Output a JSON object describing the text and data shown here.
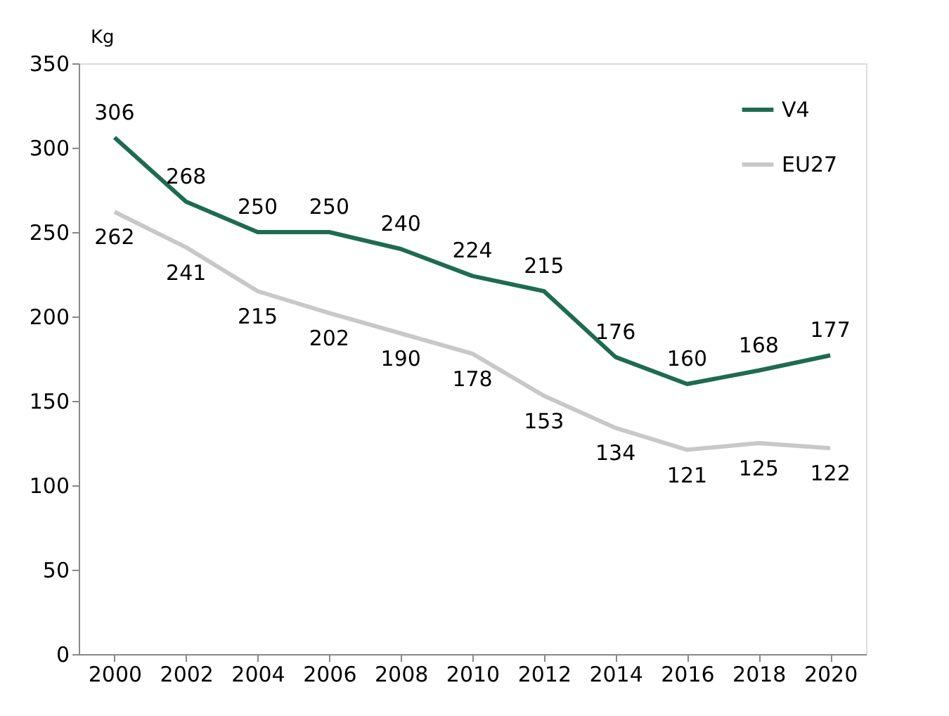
{
  "chart_data": {
    "type": "line",
    "ylabel": "Kg",
    "categories": [
      "2000",
      "2002",
      "2004",
      "2006",
      "2008",
      "2010",
      "2012",
      "2014",
      "2016",
      "2018",
      "2020"
    ],
    "series": [
      {
        "name": "V4",
        "color": "#1e6b52",
        "values": [
          306,
          268,
          250,
          250,
          240,
          224,
          215,
          176,
          160,
          168,
          177
        ]
      },
      {
        "name": "EU27",
        "color": "#c8c8c8",
        "values": [
          262,
          241,
          215,
          202,
          190,
          178,
          153,
          134,
          121,
          125,
          122
        ]
      }
    ],
    "ylim": [
      0,
      350
    ],
    "yticks": [
      0,
      50,
      100,
      150,
      200,
      250,
      300,
      350
    ],
    "data_labels": true,
    "grid": false,
    "legend": "top right",
    "marker": "none",
    "line_style": "solid"
  }
}
